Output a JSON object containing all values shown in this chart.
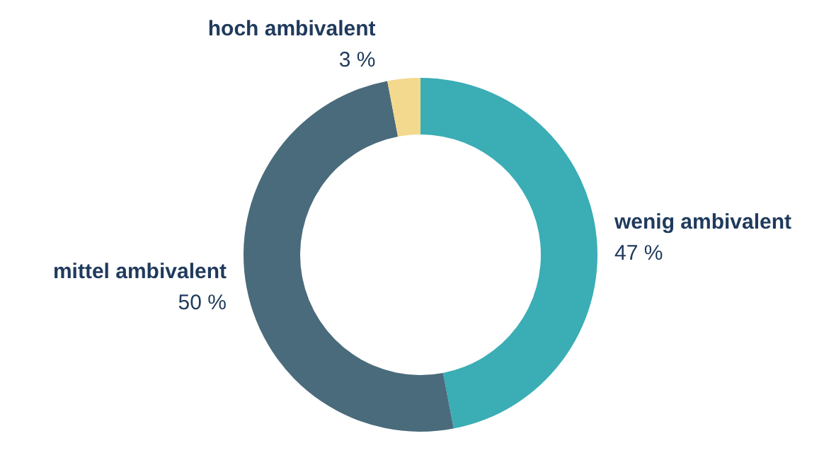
{
  "chart_data": {
    "type": "donut",
    "categories": [
      "wenig ambivalent",
      "mittel ambivalent",
      "hoch ambivalent"
    ],
    "values": [
      47,
      50,
      3
    ],
    "value_labels": [
      "47 %",
      "50 %",
      "3 %"
    ],
    "colors": [
      "#3aadb5",
      "#4a6b7b",
      "#f3d98e"
    ]
  }
}
